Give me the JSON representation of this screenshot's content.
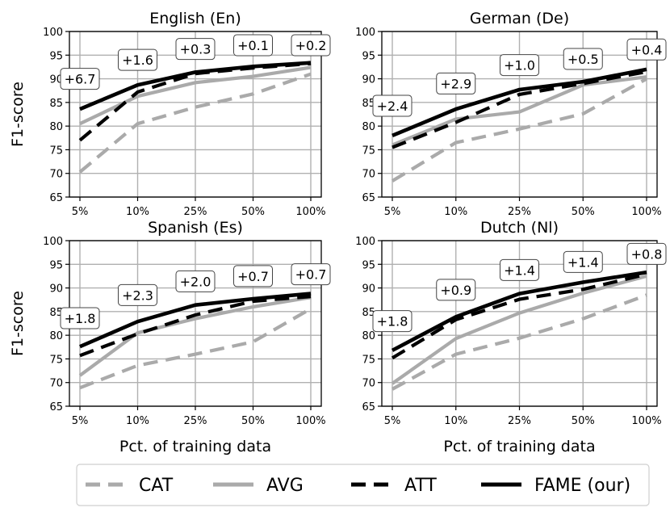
{
  "chart_data": [
    {
      "type": "line",
      "title": "English (En)",
      "ylabel": "F1-score",
      "xlabel": "",
      "categories": [
        "5%",
        "10%",
        "25%",
        "50%",
        "100%"
      ],
      "yticks": [
        "65",
        "70",
        "75",
        "80",
        "85",
        "90",
        "95",
        "100"
      ],
      "ylim": [
        65,
        100
      ],
      "grid": true,
      "series": [
        {
          "name": "CAT",
          "values": [
            70.3,
            80.5,
            84.0,
            86.8,
            91.0
          ]
        },
        {
          "name": "AVG",
          "values": [
            80.5,
            86.3,
            89.2,
            90.5,
            92.4
          ]
        },
        {
          "name": "ATT",
          "values": [
            77.0,
            87.2,
            91.1,
            92.3,
            93.2
          ]
        },
        {
          "name": "FAME (our)",
          "values": [
            83.6,
            88.7,
            91.4,
            92.6,
            93.4
          ]
        }
      ],
      "annotations": [
        {
          "text": "+6.7",
          "x": "5%",
          "y": 90.0
        },
        {
          "text": "+1.6",
          "x": "10%",
          "y": 94.0
        },
        {
          "text": "+0.3",
          "x": "25%",
          "y": 96.3
        },
        {
          "text": "+0.1",
          "x": "50%",
          "y": 97.1
        },
        {
          "text": "+0.2",
          "x": "100%",
          "y": 97.1
        }
      ]
    },
    {
      "type": "line",
      "title": "German (De)",
      "ylabel": "",
      "xlabel": "",
      "categories": [
        "5%",
        "10%",
        "25%",
        "50%",
        "100%"
      ],
      "yticks": [
        "65",
        "70",
        "75",
        "80",
        "85",
        "90",
        "95",
        "100"
      ],
      "ylim": [
        65,
        100
      ],
      "grid": true,
      "series": [
        {
          "name": "CAT",
          "values": [
            68.4,
            76.5,
            79.4,
            82.6,
            90.0
          ]
        },
        {
          "name": "AVG",
          "values": [
            76.0,
            81.5,
            83.0,
            88.7,
            90.4
          ]
        },
        {
          "name": "ATT",
          "values": [
            75.5,
            80.8,
            86.7,
            89.0,
            91.5
          ]
        },
        {
          "name": "FAME (our)",
          "values": [
            78.0,
            83.6,
            87.7,
            89.4,
            92.0
          ]
        }
      ],
      "annotations": [
        {
          "text": "+2.4",
          "x": "5%",
          "y": 84.3
        },
        {
          "text": "+2.9",
          "x": "10%",
          "y": 89.0
        },
        {
          "text": "+1.0",
          "x": "25%",
          "y": 92.9
        },
        {
          "text": "+0.5",
          "x": "50%",
          "y": 94.2
        },
        {
          "text": "+0.4",
          "x": "100%",
          "y": 96.2
        }
      ]
    },
    {
      "type": "line",
      "title": "Spanish (Es)",
      "ylabel": "F1-score",
      "xlabel": "Pct. of training data",
      "categories": [
        "5%",
        "10%",
        "25%",
        "50%",
        "100%"
      ],
      "yticks": [
        "65",
        "70",
        "75",
        "80",
        "85",
        "90",
        "95",
        "100"
      ],
      "ylim": [
        65,
        100
      ],
      "grid": true,
      "series": [
        {
          "name": "CAT",
          "values": [
            68.9,
            73.6,
            76.0,
            78.6,
            85.6
          ]
        },
        {
          "name": "AVG",
          "values": [
            71.5,
            80.5,
            83.5,
            86.0,
            88.0
          ]
        },
        {
          "name": "ATT",
          "values": [
            75.7,
            80.3,
            84.3,
            87.2,
            88.2
          ]
        },
        {
          "name": "FAME (our)",
          "values": [
            77.6,
            82.9,
            86.4,
            87.7,
            88.8
          ]
        }
      ],
      "annotations": [
        {
          "text": "+1.8",
          "x": "5%",
          "y": 83.6
        },
        {
          "text": "+2.3",
          "x": "10%",
          "y": 88.5
        },
        {
          "text": "+2.0",
          "x": "25%",
          "y": 91.4
        },
        {
          "text": "+0.7",
          "x": "50%",
          "y": 92.5
        },
        {
          "text": "+0.7",
          "x": "100%",
          "y": 92.9
        }
      ]
    },
    {
      "type": "line",
      "title": "Dutch (Nl)",
      "ylabel": "",
      "xlabel": "Pct. of training data",
      "categories": [
        "5%",
        "10%",
        "25%",
        "50%",
        "100%"
      ],
      "yticks": [
        "65",
        "70",
        "75",
        "80",
        "85",
        "90",
        "95",
        "100"
      ],
      "ylim": [
        65,
        100
      ],
      "grid": true,
      "series": [
        {
          "name": "CAT",
          "values": [
            68.6,
            76.0,
            79.4,
            83.5,
            88.5
          ]
        },
        {
          "name": "AVG",
          "values": [
            69.8,
            79.3,
            84.7,
            88.9,
            92.5
          ]
        },
        {
          "name": "ATT",
          "values": [
            75.2,
            83.3,
            87.6,
            89.7,
            92.9
          ]
        },
        {
          "name": "FAME (our)",
          "values": [
            76.8,
            83.9,
            88.8,
            91.2,
            93.3
          ]
        }
      ],
      "annotations": [
        {
          "text": "+1.8",
          "x": "5%",
          "y": 83.0
        },
        {
          "text": "+0.9",
          "x": "10%",
          "y": 89.6
        },
        {
          "text": "+1.4",
          "x": "25%",
          "y": 93.8
        },
        {
          "text": "+1.4",
          "x": "50%",
          "y": 95.5
        },
        {
          "text": "+0.8",
          "x": "100%",
          "y": 97.2
        }
      ]
    }
  ],
  "legend": {
    "placement": "bottom",
    "items": [
      {
        "name": "CAT",
        "color": "#aaaaaa",
        "style": "dashed"
      },
      {
        "name": "AVG",
        "color": "#aaaaaa",
        "style": "solid"
      },
      {
        "name": "ATT",
        "color": "#000000",
        "style": "dashed"
      },
      {
        "name": "FAME (our)",
        "color": "#000000",
        "style": "solid"
      }
    ]
  },
  "colors": {
    "CAT": "#aaaaaa",
    "AVG": "#aaaaaa",
    "ATT": "#000000",
    "FAME (our)": "#000000",
    "grid": "#b0b0b0"
  }
}
